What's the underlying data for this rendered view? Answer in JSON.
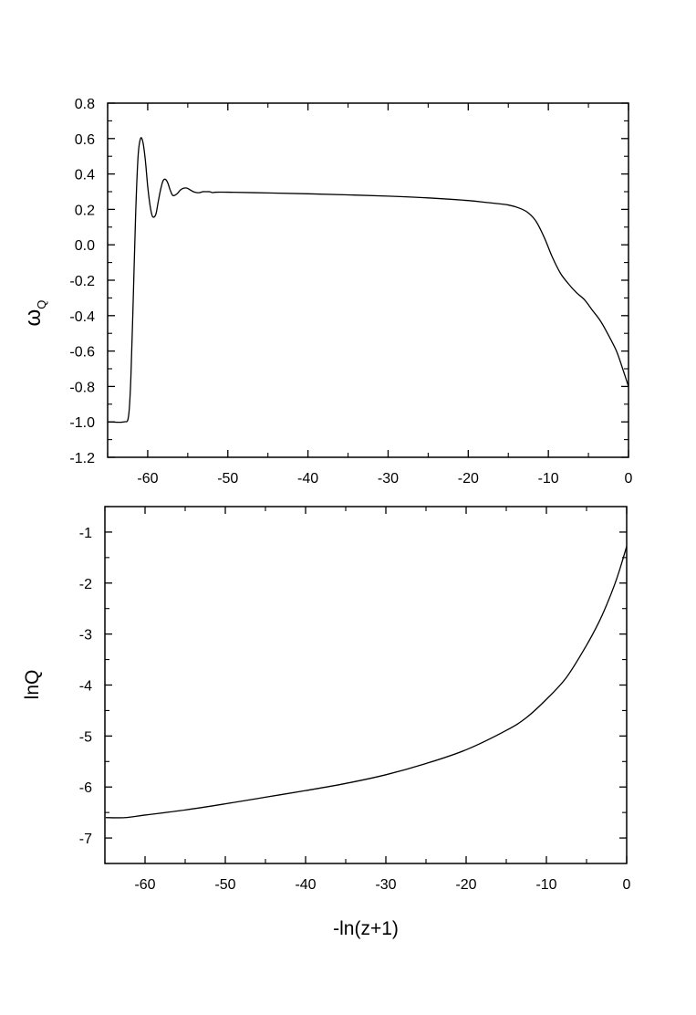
{
  "chart_data": [
    {
      "type": "line",
      "ylabel": "ω",
      "ylabel_subscript": "Q",
      "xlabel": "",
      "xlim": [
        -65,
        0
      ],
      "ylim": [
        -1.2,
        0.8
      ],
      "xticks": [
        -60,
        -50,
        -40,
        -30,
        -20,
        -10,
        0
      ],
      "xtick_labels": [
        "-60",
        "-50",
        "-40",
        "-30",
        "-20",
        "-10",
        "0"
      ],
      "yticks": [
        -1.2,
        -1.0,
        -0.8,
        -0.6,
        -0.4,
        -0.2,
        0.0,
        0.2,
        0.4,
        0.6,
        0.8
      ],
      "ytick_labels": [
        "-1.2",
        "-1.0",
        "-0.8",
        "-0.6",
        "-0.4",
        "-0.2",
        "0.0",
        "0.2",
        "0.4",
        "0.6",
        "0.8"
      ],
      "grid": false,
      "line_color": "#000000",
      "series": [
        {
          "x": [
            -64.9,
            -63.0,
            -62.4,
            -62.1,
            -61.8,
            -61.5,
            -61.2,
            -60.9,
            -60.6,
            -60.3,
            -60.0,
            -59.7,
            -59.4,
            -59.0,
            -58.7,
            -58.4,
            -58.1,
            -57.8,
            -57.5,
            -57.2,
            -56.9,
            -56.6,
            -56.3,
            -55.9,
            -55.5,
            -55.1,
            -54.7,
            -54.3,
            -53.9,
            -53.5,
            -53.1,
            -52.7,
            -52.3,
            -51.9,
            -51.5,
            -50.0,
            -45.0,
            -40.0,
            -35.0,
            -30.0,
            -25.0,
            -20.0,
            -17.5,
            -15.0,
            -13.5,
            -12.5,
            -11.5,
            -10.5,
            -9.5,
            -8.5,
            -7.5,
            -6.5,
            -5.5,
            -4.5,
            -3.5,
            -2.5,
            -1.5,
            -0.8,
            0.0
          ],
          "y": [
            -1.0,
            -1.0,
            -0.97,
            -0.75,
            -0.3,
            0.18,
            0.5,
            0.6,
            0.58,
            0.48,
            0.33,
            0.22,
            0.16,
            0.17,
            0.24,
            0.31,
            0.36,
            0.37,
            0.35,
            0.31,
            0.28,
            0.28,
            0.29,
            0.31,
            0.32,
            0.32,
            0.31,
            0.3,
            0.295,
            0.295,
            0.3,
            0.3,
            0.3,
            0.295,
            0.297,
            0.297,
            0.293,
            0.288,
            0.282,
            0.275,
            0.265,
            0.25,
            0.238,
            0.225,
            0.205,
            0.18,
            0.13,
            0.04,
            -0.07,
            -0.16,
            -0.22,
            -0.27,
            -0.31,
            -0.37,
            -0.43,
            -0.51,
            -0.6,
            -0.69,
            -0.8
          ]
        }
      ]
    },
    {
      "type": "line",
      "ylabel": "lnQ",
      "xlabel": "-ln(z+1)",
      "xlim": [
        -65,
        0
      ],
      "ylim": [
        -7.5,
        -0.5
      ],
      "xticks": [
        -60,
        -50,
        -40,
        -30,
        -20,
        -10,
        0
      ],
      "xtick_labels": [
        "-60",
        "-50",
        "-40",
        "-30",
        "-20",
        "-10",
        "0"
      ],
      "yticks": [
        -7,
        -6,
        -5,
        -4,
        -3,
        -2,
        -1
      ],
      "ytick_labels": [
        "-7",
        "-6",
        "-5",
        "-4",
        "-3",
        "-2",
        "-1"
      ],
      "grid": false,
      "line_color": "#000000",
      "series": [
        {
          "x": [
            -64.9,
            -62.5,
            -60.0,
            -55.0,
            -50.0,
            -45.0,
            -40.0,
            -35.0,
            -30.0,
            -25.0,
            -20.0,
            -15.0,
            -12.5,
            -10.0,
            -7.5,
            -5.0,
            -3.5,
            -2.5,
            -1.5,
            -0.8,
            0.0
          ],
          "y": [
            -6.6,
            -6.6,
            -6.55,
            -6.45,
            -6.33,
            -6.2,
            -6.07,
            -5.93,
            -5.76,
            -5.54,
            -5.27,
            -4.89,
            -4.64,
            -4.28,
            -3.85,
            -3.22,
            -2.78,
            -2.43,
            -2.03,
            -1.7,
            -1.28
          ]
        }
      ]
    }
  ]
}
